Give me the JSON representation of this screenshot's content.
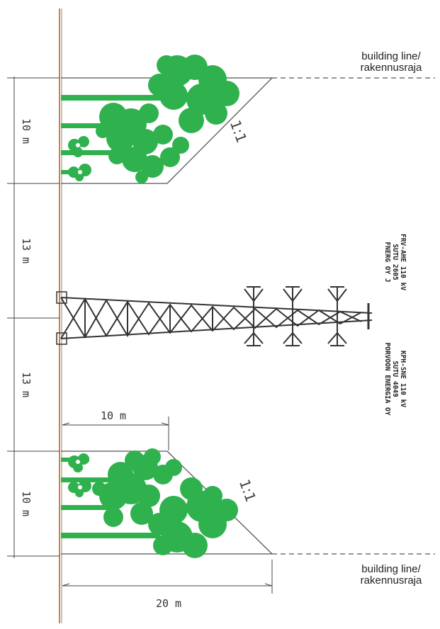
{
  "building_line_top": [
    "building line/",
    "rakennusraja"
  ],
  "building_line_bottom": [
    "building line/",
    "rakennusraja"
  ],
  "dimensions": {
    "seg1": "10 m",
    "seg2": "13 m",
    "seg3": "13 m",
    "seg4": "10 m",
    "width_zone": "10 m",
    "width_total": "20 m"
  },
  "slope_top": "1:1",
  "slope_bottom": "1:1",
  "power_lines": {
    "line1": [
      "FRV-AHE 110 kV",
      "SUTU 2605",
      "FNERG OY J"
    ],
    "line2": [
      "KPH-SNE 110 kV",
      "SUTU 4049",
      "PORVOON ENERGIA OY"
    ]
  },
  "colors": {
    "vegetation": "#2fb14e",
    "tower": "#333333",
    "axis": "#d08040"
  }
}
